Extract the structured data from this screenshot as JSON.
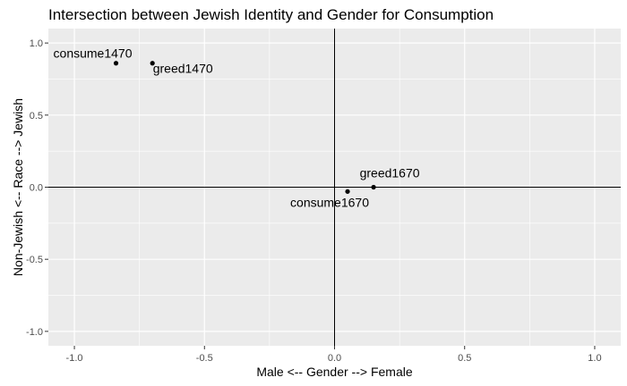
{
  "chart_data": {
    "type": "scatter",
    "title": "Intersection between Jewish Identity and Gender for Consumption",
    "xlabel": "Male <-- Gender --> Female",
    "ylabel": "Non-Jewish <-- Race --> Jewish",
    "xlim": [
      -1.1,
      1.1
    ],
    "ylim": [
      -1.1,
      1.1
    ],
    "x_ticks": [
      -1.0,
      -0.5,
      0.0,
      0.5,
      1.0
    ],
    "x_tick_labels": [
      "-1.0",
      "-0.5",
      "0.0",
      "0.5",
      "1.0"
    ],
    "y_ticks": [
      -1.0,
      -0.5,
      0.0,
      0.5,
      1.0
    ],
    "y_tick_labels": [
      "-1.0",
      "-0.5",
      "0.0",
      "0.5",
      "1.0"
    ],
    "reference_lines": {
      "x": 0,
      "y": 0
    },
    "grid": true,
    "background": "#ebebeb",
    "grid_color": "#ffffff",
    "points": [
      {
        "label": "consume1470",
        "x": -0.84,
        "y": 0.86
      },
      {
        "label": "greed1470",
        "x": -0.7,
        "y": 0.86
      },
      {
        "label": "greed1670",
        "x": 0.15,
        "y": 0.0
      },
      {
        "label": "consume1670",
        "x": 0.05,
        "y": -0.03
      }
    ]
  }
}
